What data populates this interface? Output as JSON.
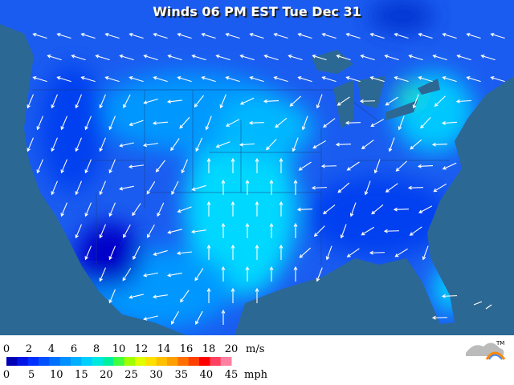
{
  "title": "Winds 06 PM EST Tue Dec 31",
  "legend": {
    "ms_labels": [
      "0",
      "2",
      "4",
      "6",
      "8",
      "10",
      "12",
      "14",
      "16",
      "18",
      "20"
    ],
    "ms_unit": "m/s",
    "mph_labels": [
      "0",
      "5",
      "10",
      "15",
      "20",
      "25",
      "30",
      "35",
      "40",
      "45"
    ],
    "mph_unit": "mph",
    "colors": [
      "#0000b4",
      "#0014e6",
      "#0030ff",
      "#0050ff",
      "#0070ff",
      "#0090ff",
      "#00b0ff",
      "#00d0ff",
      "#00e8e0",
      "#00f0a0",
      "#40ff40",
      "#a0ff00",
      "#e0ff00",
      "#ffe000",
      "#ffc000",
      "#ffa000",
      "#ff7000",
      "#ff4000",
      "#ff0000",
      "#ff4060",
      "#ff80a0"
    ]
  },
  "logo_mark": "TM"
}
